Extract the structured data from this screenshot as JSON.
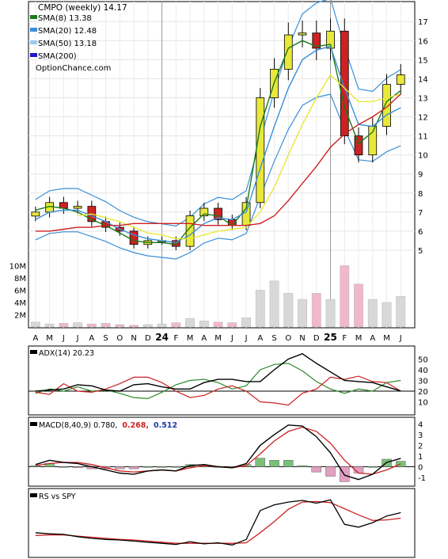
{
  "title": "CMPO (weekly) 14.17",
  "watermark": "OptionChance.com",
  "legend": [
    {
      "label": "SMA(8) 13.38",
      "color": "#1a7a1a"
    },
    {
      "label": "SMA(20) 12.48",
      "color": "#3a8fd8"
    },
    {
      "label": "SMA(50) 13.18",
      "color": "#9ec9ee"
    },
    {
      "label": "SMA(200)",
      "color": "#1a1acc"
    }
  ],
  "x_axis_labels": [
    "A",
    "M",
    "J",
    "J",
    "A",
    "S",
    "O",
    "N",
    "D",
    "24",
    "F",
    "M",
    "A",
    "M",
    "J",
    "J",
    "A",
    "S",
    "O",
    "N",
    "D",
    "25",
    "F",
    "M",
    "A",
    "M",
    "J"
  ],
  "price_axis_ticks": [
    "17",
    "16",
    "15",
    "14",
    "13",
    "12",
    "11",
    "10",
    "9",
    "8",
    "7",
    "6",
    "5"
  ],
  "volume_axis_ticks": [
    "10M",
    "8M",
    "6M",
    "4M",
    "2M"
  ],
  "adx": {
    "label": "ADX(14) 20.23",
    "ticks": [
      "50",
      "40",
      "30",
      "20",
      "10"
    ]
  },
  "macd": {
    "label": "MACD(8,40,9) 0.780,",
    "value2": "0.268,",
    "value3": "0.512",
    "ticks": [
      "4",
      "3",
      "2",
      "1",
      "0",
      "-1"
    ]
  },
  "rs": {
    "label": "RS vs SPY"
  },
  "colors": {
    "up": "#e8e83a",
    "down": "#cc2222",
    "sma8": "#1a7a1a",
    "sma20": "#3a8fd8",
    "sma50": "#e8e83a",
    "sma200": "#cc2222",
    "bollinger": "#3a8fd8",
    "adx": "#000000",
    "di_plus": "#2a8a2a",
    "di_minus": "#cc2222",
    "macd": "#000000",
    "signal": "#cc2222",
    "hist_pos": "#7ac07a",
    "hist_neg": "#e0a0c0"
  },
  "chart_data": [
    {
      "type": "line",
      "title": "CMPO (weekly) 14.17",
      "x": [
        "A",
        "M",
        "J",
        "J",
        "A",
        "S",
        "O",
        "N",
        "D",
        "24",
        "F",
        "M",
        "A",
        "M",
        "J",
        "J",
        "A",
        "S",
        "O",
        "N",
        "D",
        "25",
        "F",
        "M",
        "A",
        "M",
        "J"
      ],
      "series": [
        {
          "name": "CMPO",
          "values": [
            7.0,
            7.5,
            7.2,
            7.3,
            6.5,
            6.2,
            6.0,
            5.3,
            5.5,
            5.5,
            5.2,
            6.8,
            7.2,
            6.6,
            6.3,
            7.5,
            13.0,
            14.5,
            16.3,
            16.4,
            15.6,
            16.5,
            11.0,
            10.0,
            11.5,
            13.7,
            14.2
          ]
        },
        {
          "name": "SMA(8)",
          "values": [
            7.1,
            7.3,
            7.2,
            7.0,
            6.6,
            6.3,
            5.9,
            5.5,
            5.4,
            5.4,
            5.3,
            6.2,
            6.9,
            6.8,
            6.3,
            7.2,
            11.5,
            13.8,
            15.6,
            16.0,
            15.7,
            15.8,
            12.5,
            10.6,
            11.2,
            12.8,
            13.38
          ]
        },
        {
          "name": "SMA(20)",
          "values": [
            6.6,
            7.0,
            7.1,
            7.1,
            6.8,
            6.5,
            6.1,
            5.8,
            5.6,
            5.5,
            5.4,
            5.8,
            6.4,
            6.7,
            6.6,
            7.0,
            9.3,
            11.5,
            13.5,
            15.0,
            15.5,
            15.7,
            13.5,
            11.6,
            11.5,
            12.1,
            12.48
          ]
        },
        {
          "name": "SMA(50)",
          "values": [
            null,
            null,
            null,
            6.8,
            6.9,
            6.7,
            6.5,
            6.2,
            5.9,
            5.8,
            5.6,
            5.6,
            5.8,
            6.0,
            6.1,
            6.2,
            7.0,
            8.3,
            10.0,
            11.6,
            13.0,
            14.2,
            13.5,
            12.8,
            12.8,
            13.0,
            13.18
          ]
        },
        {
          "name": "SMA(200)",
          "values": [
            6.0,
            6.0,
            6.1,
            6.2,
            6.2,
            6.3,
            6.3,
            6.4,
            6.4,
            6.4,
            6.4,
            6.4,
            6.3,
            6.3,
            6.3,
            6.3,
            6.4,
            6.8,
            7.6,
            8.5,
            9.4,
            10.4,
            11.1,
            11.6,
            12.0,
            12.5,
            13.2
          ]
        }
      ],
      "ylim": [
        4.0,
        17.8
      ]
    },
    {
      "type": "bar",
      "title": "Volume",
      "x": [
        "A",
        "M",
        "J",
        "J",
        "A",
        "S",
        "O",
        "N",
        "D",
        "24",
        "F",
        "M",
        "A",
        "M",
        "J",
        "J",
        "A",
        "S",
        "O",
        "N",
        "D",
        "25",
        "F",
        "M",
        "A",
        "M",
        "J"
      ],
      "values": [
        0.8,
        0.5,
        0.6,
        0.7,
        0.5,
        0.6,
        0.4,
        0.3,
        0.4,
        0.5,
        0.7,
        1.4,
        1.0,
        0.8,
        0.7,
        1.5,
        6.0,
        7.5,
        5.5,
        4.5,
        5.5,
        4.5,
        10.0,
        7.0,
        4.5,
        4.0,
        5.0
      ],
      "ylim": [
        0,
        12
      ]
    },
    {
      "type": "line",
      "title": "ADX(14) 20.23",
      "x": [
        "A",
        "M",
        "J",
        "J",
        "A",
        "S",
        "O",
        "N",
        "D",
        "24",
        "F",
        "M",
        "A",
        "M",
        "J",
        "J",
        "A",
        "S",
        "O",
        "N",
        "D",
        "25",
        "F",
        "M",
        "A",
        "M",
        "J"
      ],
      "series": [
        {
          "name": "ADX",
          "values": [
            20,
            21,
            22,
            26,
            25,
            21,
            20,
            26,
            27,
            24,
            22,
            22,
            28,
            31,
            31,
            29,
            29,
            40,
            50,
            55,
            46,
            38,
            30,
            29,
            28,
            24,
            20.23
          ]
        },
        {
          "name": "+DI",
          "values": [
            18,
            22,
            20,
            24,
            20,
            21,
            18,
            14,
            13,
            19,
            26,
            30,
            31,
            28,
            22,
            25,
            40,
            45,
            46,
            39,
            29,
            22,
            18,
            22,
            20,
            28,
            30
          ]
        },
        {
          "name": "-DI",
          "values": [
            19,
            17,
            27,
            20,
            19,
            22,
            27,
            33,
            33,
            28,
            20,
            14,
            16,
            22,
            25,
            20,
            10,
            9,
            7,
            18,
            22,
            33,
            31,
            34,
            29,
            28,
            20
          ]
        }
      ],
      "ylim": [
        0,
        60
      ]
    },
    {
      "type": "line",
      "title": "MACD(8,40,9) 0.780, 0.268, 0.512",
      "x": [
        "A",
        "M",
        "J",
        "J",
        "A",
        "S",
        "O",
        "N",
        "D",
        "24",
        "F",
        "M",
        "A",
        "M",
        "J",
        "J",
        "A",
        "S",
        "O",
        "N",
        "D",
        "25",
        "F",
        "M",
        "A",
        "M",
        "J"
      ],
      "series": [
        {
          "name": "MACD",
          "values": [
            0.2,
            0.6,
            0.4,
            0.3,
            0.0,
            -0.3,
            -0.6,
            -0.7,
            -0.4,
            -0.3,
            -0.4,
            0.1,
            0.2,
            0.0,
            -0.1,
            0.3,
            2.0,
            3.0,
            3.9,
            3.8,
            2.8,
            1.3,
            -0.8,
            -1.2,
            -0.7,
            0.4,
            0.78
          ]
        },
        {
          "name": "Signal",
          "values": [
            0.1,
            0.3,
            0.4,
            0.4,
            0.2,
            -0.1,
            -0.4,
            -0.5,
            -0.4,
            -0.3,
            -0.4,
            -0.1,
            0.1,
            0.0,
            -0.1,
            0.1,
            1.2,
            2.4,
            3.3,
            3.7,
            3.3,
            2.2,
            0.6,
            -0.6,
            -0.7,
            -0.3,
            0.268
          ]
        }
      ],
      "ylim": [
        -1.6,
        4.4
      ]
    },
    {
      "type": "line",
      "title": "RS vs SPY",
      "x": [
        "A",
        "M",
        "J",
        "J",
        "A",
        "S",
        "O",
        "N",
        "D",
        "24",
        "F",
        "M",
        "A",
        "M",
        "J",
        "J",
        "A",
        "S",
        "O",
        "N",
        "D",
        "25",
        "F",
        "M",
        "A",
        "M",
        "J"
      ],
      "series": [
        {
          "name": "RS",
          "values": [
            0.4,
            0.38,
            0.37,
            0.33,
            0.3,
            0.28,
            0.27,
            0.25,
            0.23,
            0.21,
            0.19,
            0.24,
            0.2,
            0.22,
            0.18,
            0.28,
            0.8,
            0.9,
            0.95,
            0.98,
            0.93,
            0.99,
            0.55,
            0.5,
            0.58,
            0.7,
            0.76
          ]
        },
        {
          "name": "MA",
          "values": [
            0.35,
            0.36,
            0.36,
            0.34,
            0.32,
            0.3,
            0.28,
            0.27,
            0.25,
            0.23,
            0.21,
            0.21,
            0.21,
            0.21,
            0.21,
            0.22,
            0.4,
            0.6,
            0.82,
            0.95,
            0.96,
            0.94,
            0.83,
            0.72,
            0.62,
            0.63,
            0.66
          ]
        }
      ],
      "ylim": [
        0,
        1.15
      ]
    }
  ]
}
